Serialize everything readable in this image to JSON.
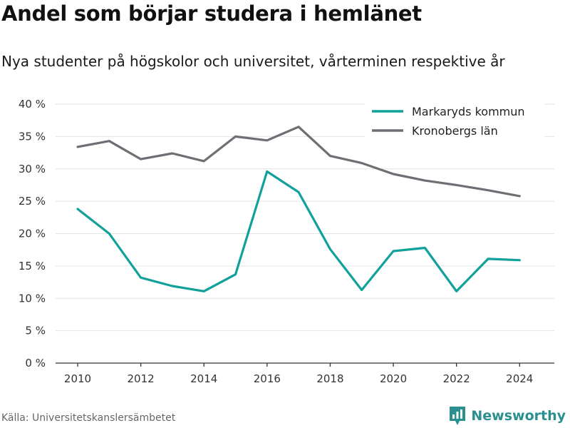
{
  "header": {
    "title": "Andel som börjar studera i hemlänet",
    "subtitle": "Nya studenter på högskolor och universitet, vårterminen respektive år"
  },
  "footer": {
    "source": "Källa: Universitetskanslersämbetet",
    "brand": "Newsworthy",
    "brand_icon": "newsworthy-logo-icon"
  },
  "colors": {
    "markaryd": "#11a09a",
    "kronoberg": "#6e6e74",
    "grid": "#e2e2e2",
    "axis": "#333333",
    "brand": "#2a8f8f"
  },
  "chart_data": {
    "type": "line",
    "title": "Andel som börjar studera i hemlänet",
    "subtitle": "Nya studenter på högskolor och universitet, vårterminen respektive år",
    "x": [
      2010,
      2011,
      2012,
      2013,
      2014,
      2015,
      2016,
      2017,
      2018,
      2019,
      2020,
      2021,
      2022,
      2023,
      2024
    ],
    "series": [
      {
        "name": "Markaryds kommun",
        "values": [
          23.8,
          20.0,
          13.2,
          11.9,
          11.1,
          13.7,
          29.6,
          26.4,
          17.6,
          11.3,
          17.3,
          17.8,
          11.1,
          16.1,
          15.9
        ]
      },
      {
        "name": "Kronobergs län",
        "values": [
          33.4,
          34.3,
          31.5,
          32.4,
          31.2,
          35.0,
          34.4,
          36.5,
          32.0,
          30.9,
          29.2,
          28.2,
          27.5,
          26.7,
          25.8
        ]
      }
    ],
    "xlabel": "",
    "ylabel": "",
    "ylim": [
      0,
      40
    ],
    "yticks": [
      0,
      5,
      10,
      15,
      20,
      25,
      30,
      35,
      40
    ],
    "ytick_labels": [
      "0 %",
      "5 %",
      "10 %",
      "15 %",
      "20 %",
      "25 %",
      "30 %",
      "35 %",
      "40 %"
    ],
    "xticks": [
      2010,
      2012,
      2014,
      2016,
      2018,
      2020,
      2022,
      2024
    ],
    "xtick_labels": [
      "2010",
      "2012",
      "2014",
      "2016",
      "2018",
      "2020",
      "2022",
      "2024"
    ],
    "grid": true,
    "legend": "top-right"
  }
}
